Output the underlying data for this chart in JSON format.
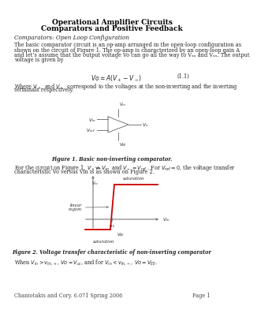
{
  "title_line1": "Operational Amplifier Circuits",
  "title_line2": "Comparators and Positive Feedback",
  "section_title": "Comparators: Open Loop Configuration",
  "para1_lines": [
    "The basic comparator circuit is an op-amp arranged in the open-loop configuration as",
    "shown on the circuit of Figure 1. The op-amp is characterized by an open-loop gain A",
    "and let’s assume that the output voltage Vo can go all the way to Vₓₓ and Vₓₓ. The output",
    "voltage is given by"
  ],
  "eq_text": "$Vo = A(V_+ - V_-)$",
  "eq_number": "(1.1)",
  "para2_lines": [
    "Where $V_+$  and $V_-$  correspond to the voltages at the non-inverting and the inverting",
    "terminals respectively."
  ],
  "fig1_caption": "Figure 1. Basic non-inverting comparator.",
  "para3_lines": [
    "For the circuit on Figure 1, $V_+ = V_{in}$  and $V_- = V_{ref}$ . For $V_{ref} = 0$, the voltage transfer",
    "characteristic Vo versus Vin is as shown on Figure 2."
  ],
  "fig2_caption": "Figure 2. Voltage transfer characteristic of non-inverting comparator",
  "para4": "When $V_{in} > v_{th,+}$, $Vo = V_{cc}$, and for $V_{in} < v_{th,-}$, $Vo = V_{EE}$.",
  "footer_left": "Chaniotakis and Cory. 6.071 Spring 2006",
  "footer_right": "Page 1",
  "bg_color": "#ffffff",
  "red_color": "#cc0000",
  "line_color": "#666666",
  "text_color": "#222222",
  "title_color": "#000000"
}
